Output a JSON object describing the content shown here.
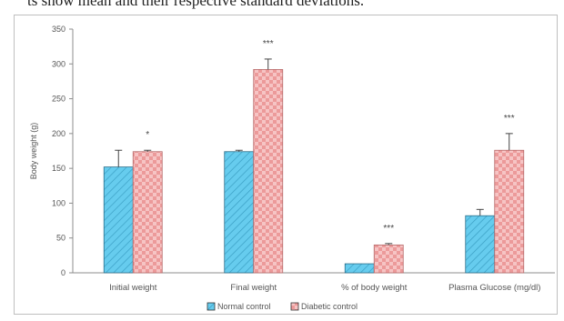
{
  "page": {
    "top_fragment": "ts show mean and their respective standard deviations."
  },
  "chart_data": {
    "type": "bar",
    "title": "",
    "ylabel": "Body weight (g)",
    "xlabel": "",
    "ylim": [
      0,
      350
    ],
    "yticks": [
      0,
      50,
      100,
      150,
      200,
      250,
      300,
      350
    ],
    "grid": false,
    "legend_position": "bottom",
    "categories": [
      "Initial weight",
      "Final weight",
      "% of body weight",
      "Plasma Glucose (mg/dl)"
    ],
    "series": [
      {
        "name": "Normal control",
        "values": [
          152,
          174,
          13,
          82
        ],
        "errors": [
          24,
          2,
          0,
          9
        ],
        "color": "#66ccee",
        "pattern": "diagonal-hatch"
      },
      {
        "name": "Diabetic control",
        "values": [
          174,
          292,
          40,
          176
        ],
        "errors": [
          2,
          15,
          2,
          24
        ],
        "color": "#f1a6a6",
        "pattern": "checker"
      }
    ],
    "significance": [
      "*",
      "***",
      "***",
      "***"
    ]
  }
}
